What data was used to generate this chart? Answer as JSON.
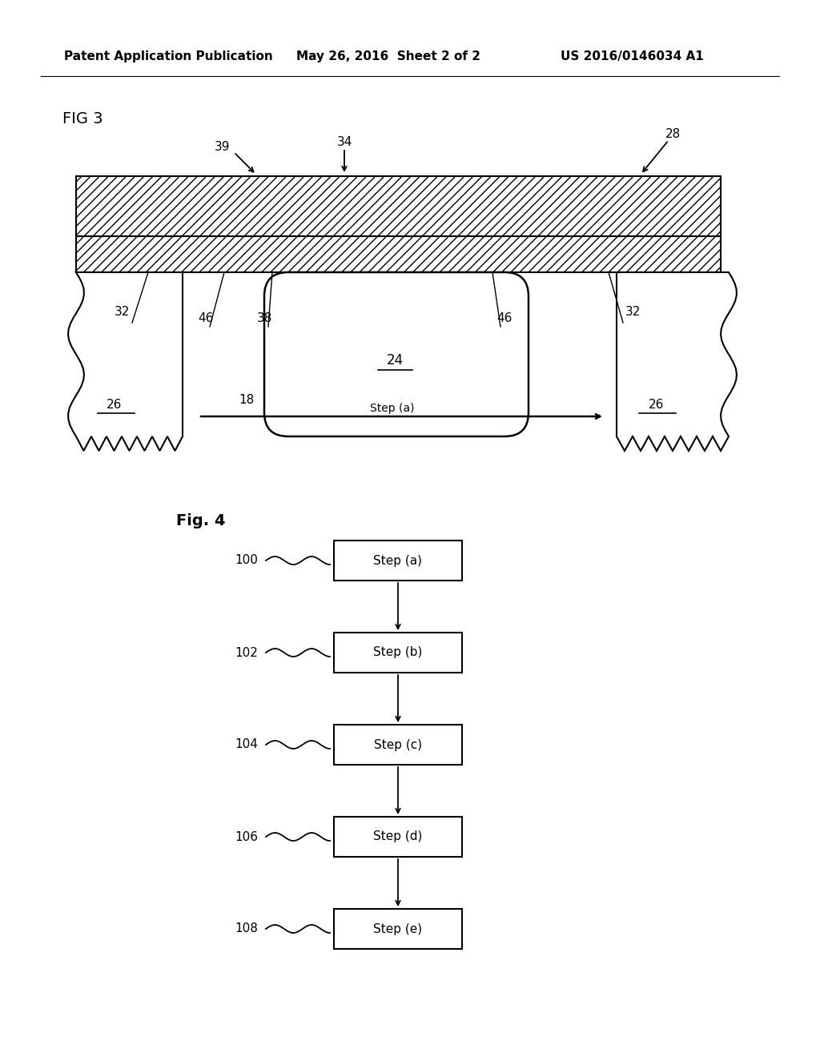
{
  "bg_color": "#ffffff",
  "header_text": "Patent Application Publication",
  "header_date": "May 26, 2016  Sheet 2 of 2",
  "header_patent": "US 2016/0146034 A1",
  "fig3_label": "FIG 3",
  "fig4_label": "Fig. 4",
  "flowchart_steps": [
    "Step (a)",
    "Step (b)",
    "Step (c)",
    "Step (d)",
    "Step (e)"
  ],
  "flowchart_numbers": [
    "100",
    "102",
    "104",
    "106",
    "108"
  ]
}
